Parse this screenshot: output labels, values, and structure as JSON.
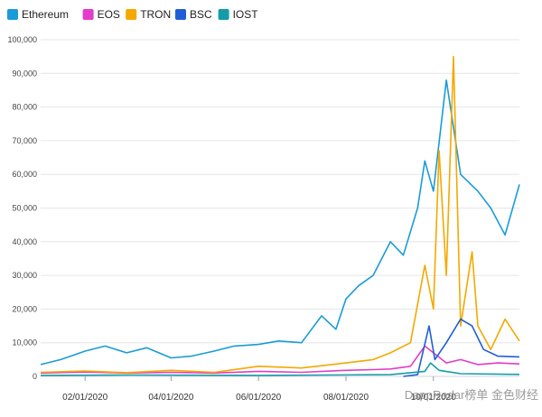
{
  "chart_data": {
    "type": "line",
    "title": "",
    "xlabel": "",
    "ylabel": "",
    "ylim": [
      0,
      100000
    ],
    "xlim": [
      "2020-01-01",
      "2020-11-30"
    ],
    "grid": true,
    "legend_position": "top-left",
    "y_ticks": [
      0,
      10000,
      20000,
      30000,
      40000,
      50000,
      60000,
      70000,
      80000,
      90000,
      100000
    ],
    "y_tick_labels": [
      "0",
      "10,000",
      "20,000",
      "30,000",
      "40,000",
      "50,000",
      "60,000",
      "70,000",
      "80,000",
      "90,000",
      "100,000"
    ],
    "x_ticks": [
      "2020-02-01",
      "2020-04-01",
      "2020-06-01",
      "2020-08-01",
      "2020-10-01"
    ],
    "x_tick_labels": [
      "02/01/2020",
      "04/01/2020",
      "06/01/2020",
      "08/01/2020",
      "10/01/2020"
    ],
    "series": [
      {
        "name": "Ethereum",
        "color": "#1a9bd7",
        "x": [
          "2020-01-01",
          "2020-01-15",
          "2020-02-01",
          "2020-02-15",
          "2020-03-01",
          "2020-03-15",
          "2020-04-01",
          "2020-04-15",
          "2020-05-01",
          "2020-05-15",
          "2020-06-01",
          "2020-06-15",
          "2020-07-01",
          "2020-07-15",
          "2020-07-25",
          "2020-08-01",
          "2020-08-10",
          "2020-08-20",
          "2020-09-01",
          "2020-09-10",
          "2020-09-20",
          "2020-09-25",
          "2020-10-01",
          "2020-10-10",
          "2020-10-20",
          "2020-11-01",
          "2020-11-10",
          "2020-11-20",
          "2020-11-30"
        ],
        "y": [
          3500,
          5000,
          7500,
          9000,
          7000,
          8500,
          5500,
          6000,
          7500,
          9000,
          9500,
          10500,
          10000,
          18000,
          14000,
          23000,
          27000,
          30000,
          40000,
          36000,
          50000,
          64000,
          55000,
          88000,
          60000,
          55000,
          50000,
          42000,
          57000
        ]
      },
      {
        "name": "EOS",
        "color": "#e23cc8",
        "x": [
          "2020-01-01",
          "2020-02-01",
          "2020-03-01",
          "2020-04-01",
          "2020-05-01",
          "2020-06-01",
          "2020-07-01",
          "2020-08-01",
          "2020-08-20",
          "2020-09-01",
          "2020-09-15",
          "2020-09-25",
          "2020-10-01",
          "2020-10-10",
          "2020-10-20",
          "2020-11-01",
          "2020-11-15",
          "2020-11-30"
        ],
        "y": [
          1000,
          1300,
          1000,
          1200,
          1000,
          1500,
          1200,
          1800,
          2000,
          2200,
          3000,
          9000,
          7000,
          4000,
          5000,
          3500,
          4000,
          3700
        ]
      },
      {
        "name": "TRON",
        "color": "#f5a800",
        "x": [
          "2020-01-01",
          "2020-02-01",
          "2020-03-01",
          "2020-04-01",
          "2020-05-01",
          "2020-06-01",
          "2020-07-01",
          "2020-08-01",
          "2020-08-20",
          "2020-09-01",
          "2020-09-15",
          "2020-09-25",
          "2020-10-01",
          "2020-10-05",
          "2020-10-10",
          "2020-10-15",
          "2020-10-20",
          "2020-10-28",
          "2020-11-01",
          "2020-11-10",
          "2020-11-20",
          "2020-11-30"
        ],
        "y": [
          1200,
          1600,
          1100,
          1800,
          1200,
          3000,
          2500,
          4000,
          5000,
          7000,
          10000,
          33000,
          20000,
          67000,
          30000,
          95000,
          15000,
          37000,
          15000,
          8000,
          17000,
          10500
        ]
      },
      {
        "name": "BSC",
        "color": "#1f5fd6",
        "x": [
          "2020-09-10",
          "2020-09-20",
          "2020-09-28",
          "2020-10-02",
          "2020-10-10",
          "2020-10-20",
          "2020-10-28",
          "2020-11-05",
          "2020-11-15",
          "2020-11-30"
        ],
        "y": [
          0,
          500,
          15000,
          5000,
          10000,
          17000,
          15000,
          8000,
          6000,
          5800
        ]
      },
      {
        "name": "IOST",
        "color": "#149ca8",
        "x": [
          "2020-01-01",
          "2020-03-01",
          "2020-06-01",
          "2020-09-01",
          "2020-09-25",
          "2020-09-29",
          "2020-10-05",
          "2020-10-20",
          "2020-11-30"
        ],
        "y": [
          300,
          400,
          300,
          500,
          1500,
          4000,
          1800,
          800,
          600
        ]
      }
    ],
    "watermark": "DappRadar榜单 金色财经"
  }
}
